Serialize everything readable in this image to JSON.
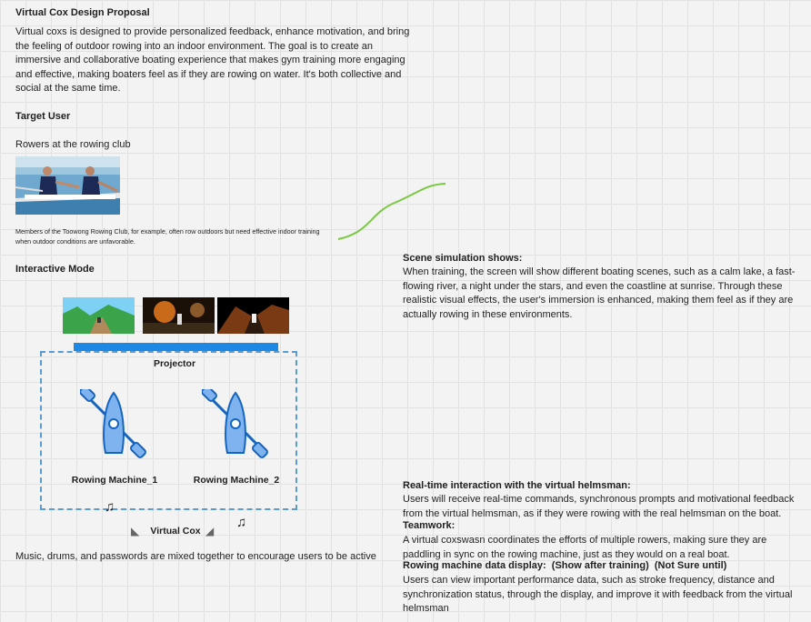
{
  "proposal": {
    "title": "Virtual Cox Design Proposal",
    "body": "Virtual coxs is designed to provide personalized feedback, enhance motivation, and bring the feeling of outdoor rowing into an indoor environment. The goal is to create an immersive and collaborative boating experience that makes gym training more engaging and effective, making boaters feel as if they are rowing on water. It's both collective and social at the same time."
  },
  "target_user": {
    "heading": "Target User",
    "text": "Rowers at the rowing club",
    "caption": "Members of the Toowong Rowing Club, for example, often row outdoors but need effective indoor training when outdoor conditions are unfavorable."
  },
  "interactive": {
    "heading": "Interactive Mode",
    "projector": "Projector",
    "machine_1": "Rowing Machine_1",
    "machine_2": "Rowing Machine_2",
    "virtual_cox": "Virtual Cox",
    "music_note": "Music, drums, and passwords are mixed together to encourage users to be active"
  },
  "scene_sim": {
    "heading": "Scene simulation shows:",
    "body": "When training, the screen will show different boating scenes, such as a calm lake, a fast-flowing river, a night under the stars, and even the coastline at sunrise. Through these realistic visual effects, the user's immersion is enhanced, making them feel as if they are actually rowing in these environments."
  },
  "realtime": {
    "heading": "Real-time interaction with the virtual helmsman:",
    "body": "Users will receive real-time commands, synchronous prompts and motivational feedback from the virtual helmsman, as if they were rowing with the real helmsman on the boat.",
    "team_heading": "Teamwork:",
    "team_body": "A virtual coxswasn coordinates the efforts of multiple rowers, making sure they are paddling in sync on the rowing machine, just as they would on a real boat.",
    "data_heading": "Rowing machine data display:  (Show after training)  (Not Sure until)",
    "data_body": "Users can view important performance data, such as stroke frequency, distance and synchronization status, through the display, and improve it with feedback from the virtual helmsman"
  },
  "icons": [
    "boat-icon",
    "music-note-icon",
    "speaker-icon"
  ],
  "colors": {
    "accent": "#1e88e5",
    "boat_fill": "#7fb3f0",
    "boat_stroke": "#1565c0",
    "connector": "#7ac943"
  }
}
